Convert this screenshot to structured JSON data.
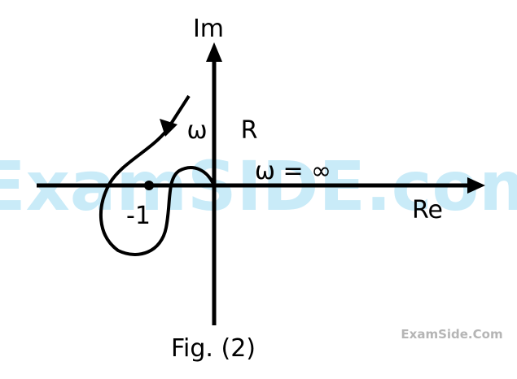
{
  "axes": {
    "imaginary_label": "Im",
    "real_label": "Re"
  },
  "annotations": {
    "omega": "ω",
    "radius": "R",
    "omega_infinity": "ω = ∞",
    "critical_point": "-1"
  },
  "caption": "Fig. (2)",
  "watermark": {
    "main": "ExamSIDE.com",
    "corner": "ExamSide.Com"
  }
}
